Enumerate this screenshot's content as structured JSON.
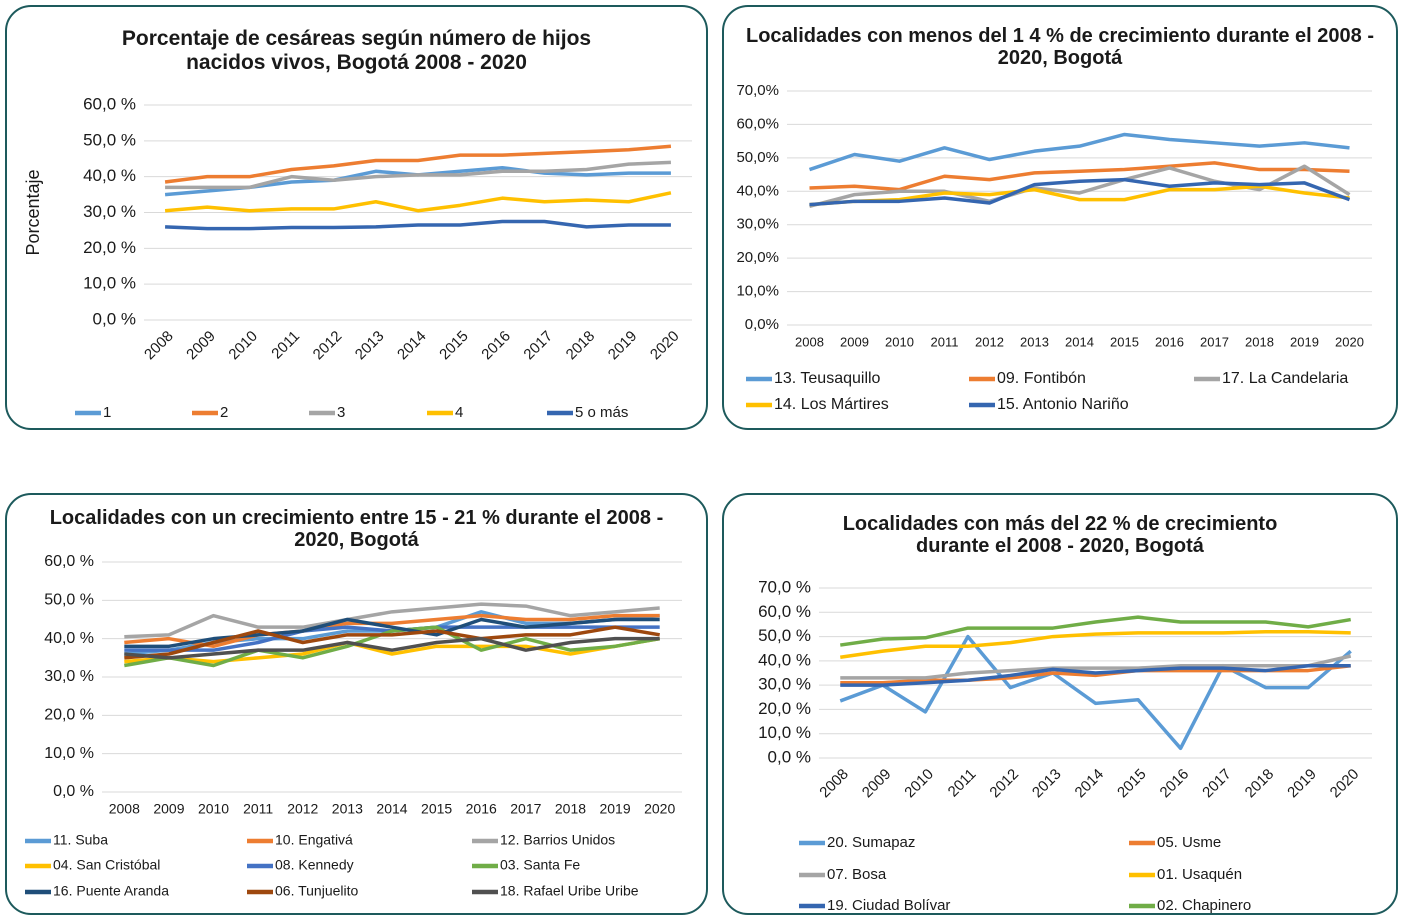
{
  "chart_data": [
    {
      "type": "line",
      "title": "Porcentaje de cesáreas según número de hijos nacidos vivos, Bogotá 2008 - 2020",
      "y_label": "Porcentaje",
      "grid": true,
      "categories": [
        "2008",
        "2009",
        "2010",
        "2011",
        "2012",
        "2013",
        "2014",
        "2015",
        "2016",
        "2017",
        "2018",
        "2019",
        "2020"
      ],
      "ylim": [
        0,
        60
      ],
      "yticks": [
        {
          "value": 0,
          "label": "0,0 %"
        },
        {
          "value": 10,
          "label": "10,0 %"
        },
        {
          "value": 20,
          "label": "20,0 %"
        },
        {
          "value": 30,
          "label": "30,0 %"
        },
        {
          "value": 40,
          "label": "40,0 %"
        },
        {
          "value": 50,
          "label": "50,0 %"
        },
        {
          "value": 60,
          "label": "60,0 %"
        }
      ],
      "series": [
        {
          "name": "1",
          "color": "#5b9bd5",
          "values": [
            35,
            36,
            37,
            38.5,
            39,
            41.5,
            40.5,
            41.5,
            42.5,
            41,
            40.5,
            41,
            41
          ]
        },
        {
          "name": "2",
          "color": "#ed7d31",
          "values": [
            38.5,
            40,
            40,
            42,
            43,
            44.5,
            44.5,
            46,
            46,
            46.5,
            47,
            47.5,
            48.5
          ]
        },
        {
          "name": "3",
          "color": "#a5a5a5",
          "values": [
            37,
            37,
            37,
            40,
            39,
            40,
            40.5,
            40.5,
            41.5,
            41.5,
            42,
            43.5,
            44
          ]
        },
        {
          "name": "4",
          "color": "#ffc000",
          "values": [
            30.5,
            31.5,
            30.5,
            31,
            31,
            33,
            30.5,
            32,
            34,
            33,
            33.5,
            33,
            35.5
          ]
        },
        {
          "name": "5 o más",
          "color": "#3566b0",
          "values": [
            26,
            25.5,
            25.5,
            25.8,
            25.8,
            26,
            26.5,
            26.5,
            27.5,
            27.5,
            26,
            26.5,
            26.5
          ]
        }
      ]
    },
    {
      "type": "line",
      "title": "Localidades con menos del 1 4 % de crecimiento durante el 2008 - 2020, Bogotá",
      "grid": true,
      "categories": [
        "2008",
        "2009",
        "2010",
        "2011",
        "2012",
        "2013",
        "2014",
        "2015",
        "2016",
        "2017",
        "2018",
        "2019",
        "2020"
      ],
      "ylim": [
        0,
        70
      ],
      "yticks": [
        {
          "value": 0,
          "label": "0,0%"
        },
        {
          "value": 10,
          "label": "10,0%"
        },
        {
          "value": 20,
          "label": "20,0%"
        },
        {
          "value": 30,
          "label": "30,0%"
        },
        {
          "value": 40,
          "label": "40,0%"
        },
        {
          "value": 50,
          "label": "50,0%"
        },
        {
          "value": 60,
          "label": "60,0%"
        },
        {
          "value": 70,
          "label": "70,0%"
        }
      ],
      "series": [
        {
          "name": "13. Teusaquillo",
          "color": "#5b9bd5",
          "values": [
            46.5,
            51,
            49,
            53,
            49.5,
            52,
            53.5,
            57,
            55.5,
            54.5,
            53.5,
            54.5,
            53
          ]
        },
        {
          "name": "09. Fontibón",
          "color": "#ed7d31",
          "values": [
            41,
            41.5,
            40.5,
            44.5,
            43.5,
            45.5,
            46,
            46.5,
            47.5,
            48.5,
            46.5,
            46.5,
            46
          ]
        },
        {
          "name": "17. La Candelaria",
          "color": "#a5a5a5",
          "values": [
            35.5,
            39,
            40,
            40,
            37,
            41,
            39.5,
            43.5,
            47,
            43,
            40.5,
            47.5,
            39
          ]
        },
        {
          "name": "14. Los Mártires",
          "color": "#ffc000",
          "values": [
            36,
            37,
            37.5,
            39.5,
            39,
            40.5,
            37.5,
            37.5,
            40.5,
            40.5,
            41.5,
            39.5,
            38
          ]
        },
        {
          "name": "15. Antonio Nariño",
          "color": "#3566b0",
          "values": [
            36,
            37,
            37,
            38,
            36.5,
            42,
            43,
            43.5,
            41.5,
            42.5,
            42,
            42.5,
            37.5
          ]
        }
      ]
    },
    {
      "type": "line",
      "title": "Localidades con un crecimiento entre 15 - 21 % durante el 2008 - 2020, Bogotá",
      "grid": true,
      "categories": [
        "2008",
        "2009",
        "2010",
        "2011",
        "2012",
        "2013",
        "2014",
        "2015",
        "2016",
        "2017",
        "2018",
        "2019",
        "2020"
      ],
      "ylim": [
        0,
        60
      ],
      "yticks": [
        {
          "value": 0,
          "label": "0,0 %"
        },
        {
          "value": 10,
          "label": "10,0 %"
        },
        {
          "value": 20,
          "label": "20,0 %"
        },
        {
          "value": 30,
          "label": "30,0 %"
        },
        {
          "value": 40,
          "label": "40,0 %"
        },
        {
          "value": 50,
          "label": "50,0 %"
        },
        {
          "value": 60,
          "label": "60,0 %"
        }
      ],
      "series": [
        {
          "name": "11. Suba",
          "color": "#5b9bd5",
          "values": [
            36,
            37,
            39,
            40,
            40,
            42,
            42,
            43,
            47,
            44,
            44,
            45,
            46
          ]
        },
        {
          "name": "10. Engativá",
          "color": "#ed7d31",
          "values": [
            39,
            40,
            38,
            41,
            42,
            44,
            44,
            45,
            46,
            45,
            45,
            46,
            46
          ]
        },
        {
          "name": "12. Barrios Unidos",
          "color": "#a5a5a5",
          "values": [
            40.5,
            41,
            46,
            43,
            43,
            45,
            47,
            48,
            49,
            48.5,
            46,
            47,
            48
          ]
        },
        {
          "name": "04. San Cristóbal",
          "color": "#ffc000",
          "values": [
            34,
            35,
            34,
            35,
            36,
            39,
            36,
            38,
            38,
            38,
            36,
            38,
            40
          ]
        },
        {
          "name": "08. Kennedy",
          "color": "#4472c4",
          "values": [
            37,
            37,
            37,
            39,
            42,
            43,
            42,
            43,
            43,
            43,
            43,
            43,
            43
          ]
        },
        {
          "name": "03. Santa Fe",
          "color": "#70ad47",
          "values": [
            33,
            35,
            33,
            37,
            35,
            38,
            42,
            43,
            37,
            40,
            37,
            38,
            40
          ]
        },
        {
          "name": "16. Puente Aranda",
          "color": "#1f4e79",
          "values": [
            38,
            38,
            40,
            41,
            42,
            45,
            43,
            41,
            45,
            43,
            44,
            45,
            45
          ]
        },
        {
          "name": "06. Tunjuelito",
          "color": "#9e480e",
          "values": [
            35,
            36,
            39,
            42,
            39,
            41,
            41,
            42,
            40,
            41,
            41,
            43,
            41
          ]
        },
        {
          "name": "18. Rafael Uribe Uribe",
          "color": "#505050",
          "values": [
            36,
            35,
            36,
            37,
            37,
            39,
            37,
            39,
            40,
            37,
            39,
            40,
            40
          ]
        }
      ]
    },
    {
      "type": "line",
      "title": "Localidades con más del 22 % de crecimiento durante el 2008 - 2020, Bogotá",
      "grid": true,
      "categories": [
        "2008",
        "2009",
        "2010",
        "2011",
        "2012",
        "2013",
        "2014",
        "2015",
        "2016",
        "2017",
        "2018",
        "2019",
        "2020"
      ],
      "ylim": [
        0,
        70
      ],
      "yticks": [
        {
          "value": 0,
          "label": "0,0 %"
        },
        {
          "value": 10,
          "label": "10,0 %"
        },
        {
          "value": 20,
          "label": "20,0 %"
        },
        {
          "value": 30,
          "label": "30,0 %"
        },
        {
          "value": 40,
          "label": "40,0 %"
        },
        {
          "value": 50,
          "label": "50,0 %"
        },
        {
          "value": 60,
          "label": "60,0 %"
        },
        {
          "value": 70,
          "label": "70,0 %"
        }
      ],
      "series": [
        {
          "name": "20. Sumapaz",
          "color": "#5b9bd5",
          "values": [
            23.5,
            30,
            19,
            50,
            29,
            35,
            22.5,
            24,
            4,
            38,
            29,
            29,
            44
          ]
        },
        {
          "name": "05. Usme",
          "color": "#ed7d31",
          "values": [
            31,
            31,
            32,
            32,
            33,
            35,
            34,
            36,
            36,
            36,
            36,
            36,
            38
          ]
        },
        {
          "name": "07. Bosa",
          "color": "#a5a5a5",
          "values": [
            33,
            33,
            33,
            35,
            36,
            37,
            37,
            37,
            38,
            38,
            38,
            38,
            42
          ]
        },
        {
          "name": "01. Usaquén",
          "color": "#ffc000",
          "values": [
            41.5,
            44,
            46,
            46,
            47.5,
            50,
            51,
            51.5,
            51.5,
            51.5,
            52,
            52,
            51.5
          ]
        },
        {
          "name": "19. Ciudad Bolívar",
          "color": "#3566b0",
          "values": [
            30,
            30,
            31,
            32,
            34,
            36.5,
            35,
            36,
            37,
            37,
            36,
            38,
            38
          ]
        },
        {
          "name": "02. Chapinero",
          "color": "#70ad47",
          "values": [
            46.5,
            49,
            49.5,
            53.5,
            53.5,
            53.5,
            56,
            58,
            56,
            56,
            56,
            54,
            57
          ]
        }
      ]
    }
  ]
}
